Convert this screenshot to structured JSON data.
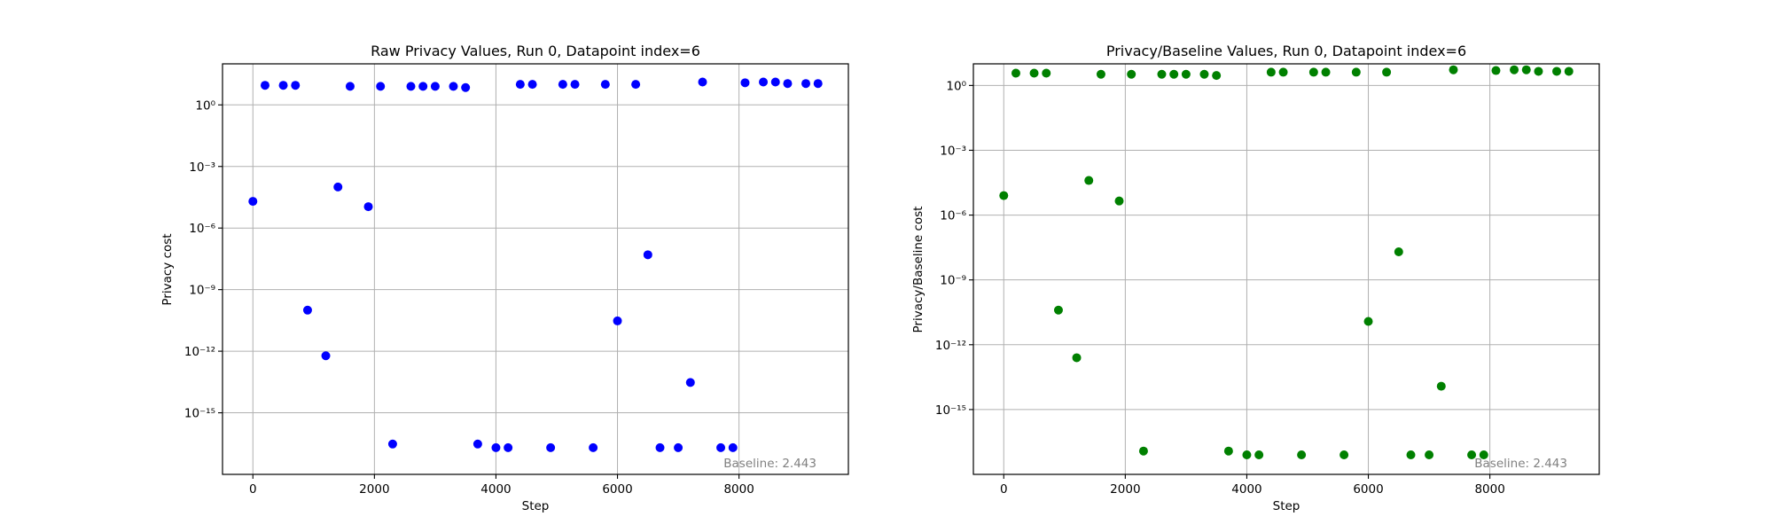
{
  "chart_data": [
    {
      "type": "scatter",
      "title": "Raw Privacy Values, Run 0, Datapoint index=6",
      "xlabel": "Step",
      "ylabel": "Privacy cost",
      "y_scale": "log",
      "grid": true,
      "color": "#0000ff",
      "xlim": [
        -500,
        9800
      ],
      "ylim": [
        1e-18,
        100.0
      ],
      "x_ticks": [
        0,
        2000,
        4000,
        6000,
        8000
      ],
      "y_ticks": [
        1e-15,
        1e-12,
        1e-09,
        1e-06,
        0.001,
        1.0
      ],
      "annotation": "Baseline: 2.443",
      "annotation_position": "bottom-right",
      "series": [
        {
          "x": [
            0,
            200,
            500,
            700,
            900,
            1200,
            1400,
            1600,
            1900,
            2100,
            2300,
            2600,
            2800,
            3000,
            3300,
            3500,
            3700,
            4000,
            4200,
            4400,
            4600,
            4900,
            5100,
            5300,
            5600,
            5800,
            6000,
            6300,
            6500,
            6700,
            7000,
            7200,
            7400,
            7700,
            7900,
            8100,
            8400,
            8600,
            8800,
            9100,
            9300
          ],
          "y": [
            2e-05,
            9,
            9,
            9,
            1e-10,
            6e-13,
            0.0001,
            8,
            1.1e-05,
            8,
            3e-17,
            8,
            8,
            8,
            8,
            7,
            3e-17,
            2e-17,
            2e-17,
            10,
            10,
            2e-17,
            10,
            10,
            2e-17,
            10,
            3e-11,
            10,
            5e-08,
            2e-17,
            2e-17,
            3e-14,
            13,
            2e-17,
            2e-17,
            12,
            13,
            13,
            11,
            11,
            11
          ]
        }
      ]
    },
    {
      "type": "scatter",
      "title": "Privacy/Baseline Values, Run 0, Datapoint index=6",
      "xlabel": "Step",
      "ylabel": "Privacy/Baseline cost",
      "y_scale": "log",
      "grid": true,
      "color": "#008000",
      "xlim": [
        -500,
        9800
      ],
      "ylim": [
        1e-18,
        10.0
      ],
      "x_ticks": [
        0,
        2000,
        4000,
        6000,
        8000
      ],
      "y_ticks": [
        1e-15,
        1e-12,
        1e-09,
        1e-06,
        0.001,
        1.0
      ],
      "annotation": "Baseline: 2.443",
      "annotation_position": "bottom-right",
      "series": [
        {
          "x": [
            0,
            200,
            500,
            700,
            900,
            1200,
            1400,
            1600,
            1900,
            2100,
            2300,
            2600,
            2800,
            3000,
            3300,
            3500,
            3700,
            4000,
            4200,
            4400,
            4600,
            4900,
            5100,
            5300,
            5600,
            5800,
            6000,
            6300,
            6500,
            6700,
            7000,
            7200,
            7400,
            7700,
            7900,
            8100,
            8400,
            8600,
            8800,
            9100,
            9300
          ],
          "y": [
            8e-06,
            3.7,
            3.7,
            3.7,
            4e-11,
            2.5e-13,
            4e-05,
            3.3,
            4.5e-06,
            3.3,
            1.2e-17,
            3.3,
            3.3,
            3.3,
            3.3,
            2.9,
            1.2e-17,
            8e-18,
            8e-18,
            4.1,
            4.1,
            8e-18,
            4.1,
            4.1,
            8e-18,
            4.1,
            1.2e-11,
            4.1,
            2e-08,
            8e-18,
            8e-18,
            1.2e-14,
            5.3,
            8e-18,
            8e-18,
            4.9,
            5.3,
            5.3,
            4.5,
            4.5,
            4.5
          ]
        }
      ]
    }
  ]
}
